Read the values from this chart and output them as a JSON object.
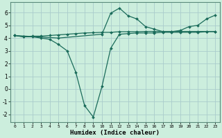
{
  "xlabel": "Humidex (Indice chaleur)",
  "bg_color": "#cceedd",
  "grid_color": "#aacccc",
  "line_color": "#1a6b5a",
  "xlim": [
    -0.5,
    23.5
  ],
  "ylim": [
    -2.6,
    6.8
  ],
  "xticks": [
    0,
    1,
    2,
    3,
    4,
    5,
    6,
    7,
    8,
    9,
    10,
    11,
    12,
    13,
    14,
    15,
    16,
    17,
    18,
    19,
    20,
    21,
    22,
    23
  ],
  "yticks": [
    -2,
    -1,
    0,
    1,
    2,
    3,
    4,
    5,
    6
  ],
  "line1_x": [
    0,
    1,
    2,
    3,
    4,
    5,
    6,
    7,
    8,
    9,
    10,
    11,
    12,
    13,
    14,
    15,
    16,
    17,
    18,
    19,
    20,
    21,
    22,
    23
  ],
  "line1_y": [
    4.2,
    4.1,
    4.1,
    4.0,
    3.9,
    3.5,
    3.0,
    1.3,
    -1.3,
    -2.2,
    0.2,
    3.2,
    4.3,
    4.35,
    4.4,
    4.4,
    4.4,
    4.45,
    4.45,
    4.45,
    4.45,
    4.45,
    4.5,
    4.5
  ],
  "line2_x": [
    0,
    1,
    2,
    3,
    4,
    5,
    6,
    7,
    8,
    9,
    10,
    11,
    12,
    13,
    14,
    15,
    16,
    17,
    18,
    19,
    20,
    21,
    22,
    23
  ],
  "line2_y": [
    4.2,
    4.1,
    4.15,
    4.15,
    4.2,
    4.25,
    4.3,
    4.35,
    4.4,
    4.42,
    4.45,
    4.45,
    4.5,
    4.5,
    4.5,
    4.52,
    4.52,
    4.52,
    4.52,
    4.52,
    4.52,
    4.52,
    4.52,
    4.52
  ],
  "line3_x": [
    0,
    5,
    10,
    11,
    12,
    13,
    14,
    15,
    16,
    17,
    18,
    19,
    20,
    21,
    22,
    23
  ],
  "line3_y": [
    4.2,
    4.0,
    4.3,
    5.95,
    6.35,
    5.75,
    5.5,
    4.9,
    4.7,
    4.5,
    4.5,
    4.6,
    4.9,
    5.0,
    5.5,
    5.8
  ]
}
